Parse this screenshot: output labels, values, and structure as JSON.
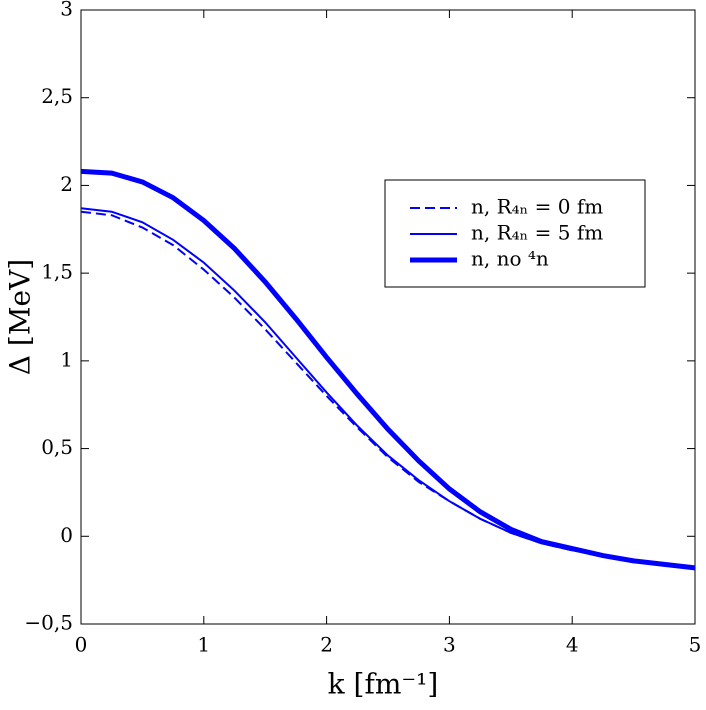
{
  "chart_data": {
    "type": "line",
    "xlabel": "k [fm⁻¹]",
    "ylabel": "Δ [MeV]",
    "x": [
      0,
      0.25,
      0.5,
      0.75,
      1,
      1.25,
      1.5,
      1.75,
      2,
      2.25,
      2.5,
      2.75,
      3,
      3.25,
      3.5,
      3.75,
      4,
      4.25,
      4.5,
      4.75,
      5
    ],
    "series": [
      {
        "name": "n, R₄ₙ = 0 fm",
        "color": "#0000ff",
        "dashed": true,
        "line_width": 2,
        "values": [
          1.85,
          1.83,
          1.76,
          1.66,
          1.52,
          1.36,
          1.18,
          0.99,
          0.8,
          0.62,
          0.45,
          0.31,
          0.2,
          0.1,
          0.02,
          -0.04,
          -0.08,
          -0.11,
          -0.14,
          -0.16,
          -0.18
        ]
      },
      {
        "name": "n, R₄ₙ = 5 fm",
        "color": "#0000ff",
        "dashed": false,
        "line_width": 2,
        "values": [
          1.87,
          1.85,
          1.79,
          1.69,
          1.56,
          1.4,
          1.22,
          1.02,
          0.82,
          0.63,
          0.46,
          0.32,
          0.2,
          0.1,
          0.02,
          -0.04,
          -0.08,
          -0.11,
          -0.14,
          -0.16,
          -0.18
        ]
      },
      {
        "name": "n, no ⁴n",
        "color": "#0000ff",
        "dashed": false,
        "line_width": 5,
        "values": [
          2.08,
          2.07,
          2.02,
          1.93,
          1.8,
          1.64,
          1.45,
          1.24,
          1.02,
          0.81,
          0.61,
          0.43,
          0.27,
          0.14,
          0.04,
          -0.03,
          -0.07,
          -0.11,
          -0.14,
          -0.16,
          -0.18
        ]
      }
    ],
    "xlim": [
      0,
      5
    ],
    "xticks": [
      0,
      1,
      2,
      3,
      4,
      5
    ],
    "ylim": [
      -0.5,
      3
    ],
    "yticks": [
      {
        "value": -0.5,
        "label": "−0,5"
      },
      0,
      {
        "value": 0.5,
        "label": "0,5"
      },
      1,
      {
        "value": 1.5,
        "label": "1,5"
      },
      2,
      {
        "value": 2.5,
        "label": "2,5"
      },
      3
    ],
    "grid": false,
    "legend": "upper right"
  }
}
